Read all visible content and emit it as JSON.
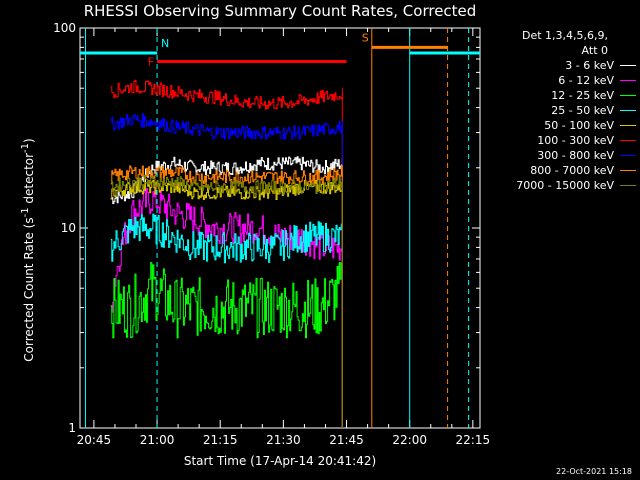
{
  "chart_data": {
    "type": "line",
    "title": "RHESSI Observing Summary Count Rates, Corrected",
    "xlabel": "Start Time (17-Apr-14 20:41:42)",
    "ylabel_pre": "Corrected Count Rate (s",
    "ylabel_sup1": "-1",
    "ylabel_mid": " detector",
    "ylabel_sup2": "-1",
    "ylabel_post": ")",
    "ylog": true,
    "ylim": [
      1,
      100
    ],
    "yticks": [
      "1",
      "10",
      "100"
    ],
    "xlim_min": [
      -18.3,
      76.7
    ],
    "xticks": [
      "20:45",
      "21:00",
      "21:15",
      "21:30",
      "21:45",
      "22:00",
      "22:15"
    ],
    "xticks_min": [
      -15,
      0,
      15,
      30,
      45,
      60,
      75
    ],
    "data_start_min": -11,
    "data_end_min": 44,
    "legend_header": [
      "Det 1,3,4,5,6,9,",
      "Att 0"
    ],
    "series": [
      {
        "name": "3 - 6 keV",
        "color": "#ffffff",
        "values": [
          14,
          15,
          20,
          21,
          20,
          20,
          20,
          21,
          21,
          21,
          20,
          21
        ]
      },
      {
        "name": "6 - 12 keV",
        "color": "#ff00ff",
        "values": [
          4,
          12,
          14,
          12,
          11,
          10,
          10,
          10,
          9,
          9,
          8,
          8
        ]
      },
      {
        "name": "12 - 25 keV",
        "color": "#00ff00",
        "values": [
          4,
          4,
          5,
          4,
          4,
          4,
          4,
          4,
          4,
          4,
          4,
          5
        ]
      },
      {
        "name": "25 - 50 keV",
        "color": "#00ffff",
        "values": [
          8,
          10,
          10,
          9,
          8,
          8,
          8,
          8,
          8,
          9,
          9,
          9
        ]
      },
      {
        "name": "50 - 100 keV",
        "color": "#d8c800",
        "values": [
          15,
          16,
          16,
          16,
          15,
          15,
          15,
          15,
          15,
          16,
          16,
          16
        ]
      },
      {
        "name": "100 - 300 keV",
        "color": "#ff0000",
        "values": [
          48,
          51,
          50,
          48,
          46,
          45,
          43,
          42,
          42,
          43,
          45,
          47
        ]
      },
      {
        "name": "300 - 800 keV",
        "color": "#0000ff",
        "values": [
          33,
          35,
          34,
          32,
          31,
          30,
          30,
          30,
          30,
          30,
          31,
          32
        ]
      },
      {
        "name": "800 - 7000 keV",
        "color": "#ff8000",
        "values": [
          18,
          19,
          19,
          19,
          18,
          18,
          18,
          18,
          18,
          18,
          18,
          19
        ]
      },
      {
        "name": "7000 - 15000 keV",
        "color": "#808000",
        "values": [
          16,
          17,
          17,
          17,
          16,
          16,
          16,
          16,
          16,
          16,
          16,
          17
        ]
      }
    ],
    "annotations": [
      {
        "label": "N",
        "color": "#00ffff",
        "start_min": -18.3,
        "end_min": 0,
        "start2_min": 60,
        "end2_min": 76.7,
        "level": 75
      },
      {
        "label": "F",
        "color": "#ff0000",
        "start_min": 0,
        "end_min": 45,
        "level": 68
      },
      {
        "label": "S",
        "color": "#ff8000",
        "start_min": 51,
        "end_min": 69,
        "level": 80
      }
    ],
    "vlines": [
      {
        "min": -17,
        "color": "#00ffff",
        "style": "solid"
      },
      {
        "min": 0,
        "color": "#00ffff",
        "style": "dashed"
      },
      {
        "min": 51,
        "color": "#ff8000",
        "style": "solid"
      },
      {
        "min": 60,
        "color": "#00ffff",
        "style": "solid"
      },
      {
        "min": 69,
        "color": "#ff8000",
        "style": "dashed"
      },
      {
        "min": 74,
        "color": "#00ffff",
        "style": "dashed"
      }
    ]
  },
  "timestamp": "22-Oct-2021 15:18"
}
